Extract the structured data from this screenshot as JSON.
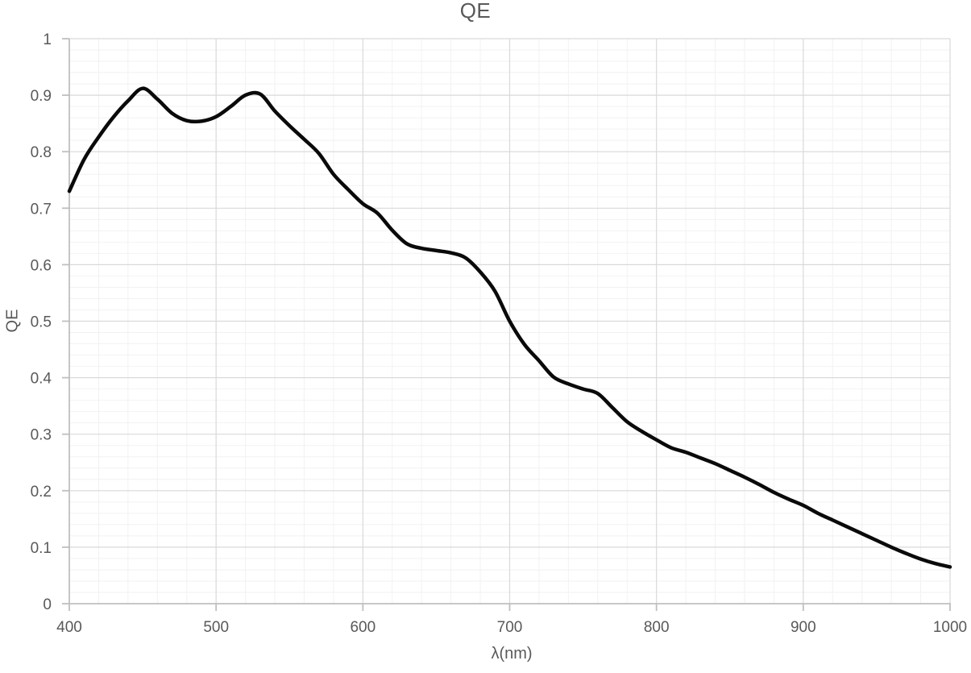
{
  "chart_data": {
    "type": "line",
    "title": "QE",
    "xlabel": "λ(nm)",
    "ylabel": "QE",
    "xlim": [
      400,
      1000
    ],
    "ylim": [
      0,
      1
    ],
    "x_major_step": 100,
    "x_minor_step": 20,
    "y_major_step": 0.1,
    "y_minor_step": 0.02,
    "grid": "major-and-minor",
    "legend": "none",
    "smoothed": true,
    "x_tick_labels": [
      "400",
      "500",
      "600",
      "700",
      "800",
      "900",
      "1000"
    ],
    "y_tick_labels": [
      "0",
      "0.1",
      "0.2",
      "0.3",
      "0.4",
      "0.5",
      "0.6",
      "0.7",
      "0.8",
      "0.9",
      "1"
    ],
    "series": [
      {
        "name": "QE",
        "x": [
          400,
          410,
          420,
          430,
          440,
          450,
          460,
          470,
          480,
          490,
          500,
          510,
          520,
          530,
          540,
          550,
          560,
          570,
          580,
          590,
          600,
          610,
          620,
          630,
          640,
          650,
          660,
          670,
          680,
          690,
          700,
          710,
          720,
          730,
          740,
          750,
          760,
          770,
          780,
          790,
          800,
          810,
          820,
          830,
          840,
          850,
          860,
          870,
          880,
          890,
          900,
          910,
          920,
          930,
          940,
          950,
          960,
          970,
          980,
          990,
          1000
        ],
        "values": [
          0.73,
          0.786,
          0.826,
          0.861,
          0.89,
          0.912,
          0.893,
          0.868,
          0.855,
          0.854,
          0.862,
          0.88,
          0.9,
          0.902,
          0.872,
          0.846,
          0.822,
          0.797,
          0.76,
          0.733,
          0.708,
          0.691,
          0.661,
          0.637,
          0.629,
          0.625,
          0.621,
          0.612,
          0.587,
          0.553,
          0.5,
          0.459,
          0.43,
          0.401,
          0.389,
          0.38,
          0.372,
          0.347,
          0.322,
          0.305,
          0.29,
          0.276,
          0.268,
          0.258,
          0.248,
          0.236,
          0.224,
          0.211,
          0.197,
          0.185,
          0.174,
          0.16,
          0.148,
          0.136,
          0.124,
          0.112,
          0.1,
          0.089,
          0.079,
          0.071,
          0.065
        ]
      }
    ]
  },
  "style": {
    "line_color": "#0a0a0a",
    "line_width": 4.5,
    "minor_grid_color": "#f2f2f2",
    "major_grid_color": "#d9d9d9",
    "axis_color": "#bfbfbf",
    "text_color": "#595959",
    "background": "#ffffff"
  }
}
